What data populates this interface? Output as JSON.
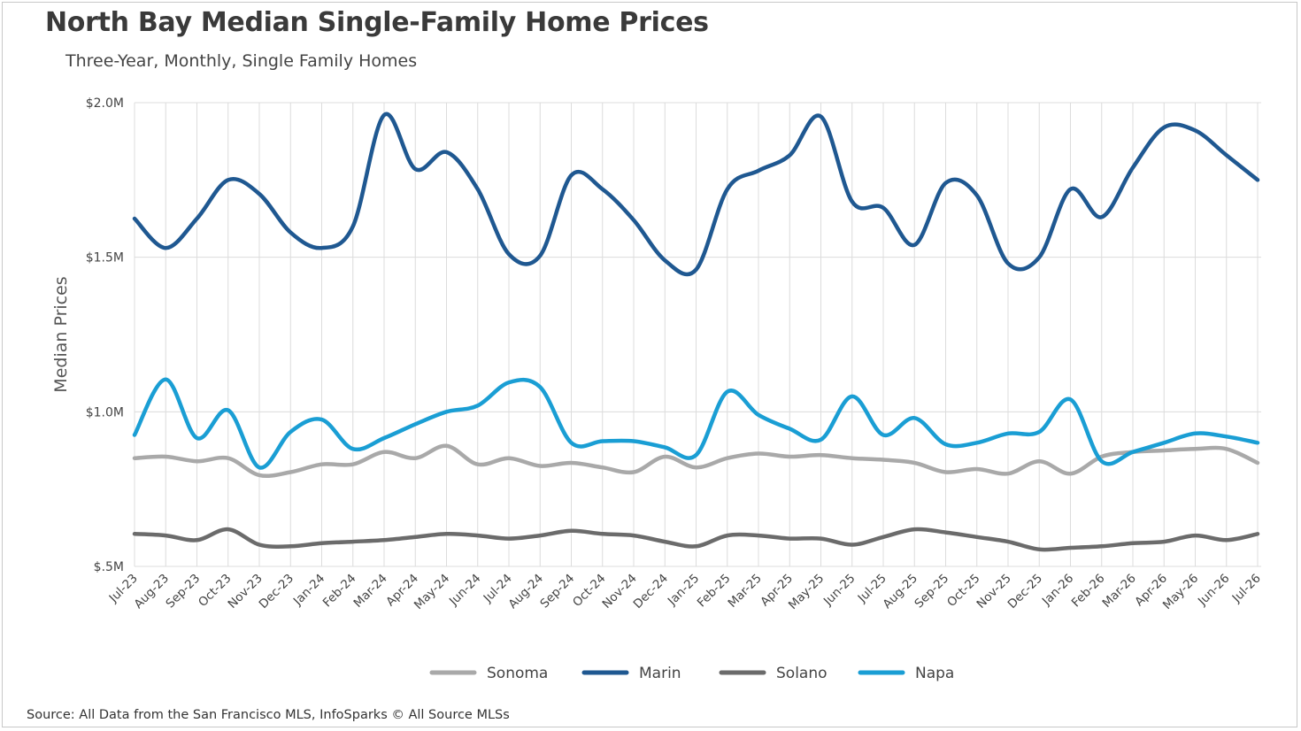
{
  "chart_data": {
    "type": "line",
    "title": "North Bay Median Single-Family Home Prices",
    "subtitle": "Three-Year, Monthly, Single Family Homes",
    "ylabel": "Median Prices",
    "xlabel": "",
    "ylim": [
      500000,
      2000000
    ],
    "yticks": [
      {
        "value": 500000,
        "label": "$.5M"
      },
      {
        "value": 1000000,
        "label": "$1.0M"
      },
      {
        "value": 1500000,
        "label": "$1.5M"
      },
      {
        "value": 2000000,
        "label": "$2.0M"
      }
    ],
    "grid": true,
    "legend_position": "bottom",
    "categories": [
      "Jul-23",
      "Aug-23",
      "Sep-23",
      "Oct-23",
      "Nov-23",
      "Dec-23",
      "Jan-24",
      "Feb-24",
      "Mar-24",
      "Apr-24",
      "May-24",
      "Jun-24",
      "Jul-24",
      "Aug-24",
      "Sep-24",
      "Oct-24",
      "Nov-24",
      "Dec-24",
      "Jan-25",
      "Feb-25",
      "Mar-25",
      "Apr-25",
      "May-25",
      "Jun-25",
      "Jul-25",
      "Aug-25",
      "Sep-25",
      "Oct-25",
      "Nov-25",
      "Dec-25",
      "Jan-26",
      "Feb-26",
      "Mar-26",
      "Apr-26",
      "May-26",
      "Jun-26",
      "Jul-26"
    ],
    "series": [
      {
        "name": "Sonoma",
        "color": "#a9a9a9",
        "values": [
          850000,
          855000,
          840000,
          850000,
          795000,
          805000,
          830000,
          830000,
          870000,
          850000,
          890000,
          830000,
          850000,
          825000,
          835000,
          820000,
          805000,
          855000,
          820000,
          850000,
          865000,
          855000,
          860000,
          850000,
          845000,
          835000,
          805000,
          815000,
          800000,
          840000,
          800000,
          855000,
          870000,
          875000,
          880000,
          880000,
          835000
        ]
      },
      {
        "name": "Marin",
        "color": "#1f5891",
        "values": [
          1625000,
          1530000,
          1625000,
          1750000,
          1705000,
          1580000,
          1530000,
          1600000,
          1960000,
          1785000,
          1840000,
          1720000,
          1510000,
          1505000,
          1765000,
          1720000,
          1620000,
          1490000,
          1460000,
          1720000,
          1780000,
          1830000,
          1955000,
          1680000,
          1660000,
          1540000,
          1740000,
          1700000,
          1480000,
          1500000,
          1720000,
          1630000,
          1790000,
          1920000,
          1910000,
          1830000,
          1750000
        ]
      },
      {
        "name": "Solano",
        "color": "#6b6b6b",
        "values": [
          605000,
          600000,
          585000,
          620000,
          570000,
          565000,
          575000,
          580000,
          585000,
          595000,
          605000,
          600000,
          590000,
          600000,
          615000,
          605000,
          600000,
          580000,
          565000,
          600000,
          600000,
          590000,
          590000,
          570000,
          595000,
          620000,
          610000,
          595000,
          580000,
          555000,
          560000,
          565000,
          575000,
          580000,
          600000,
          585000,
          605000
        ]
      },
      {
        "name": "Napa",
        "color": "#1a9ed4",
        "values": [
          925000,
          1105000,
          915000,
          1005000,
          820000,
          935000,
          975000,
          880000,
          915000,
          960000,
          1000000,
          1020000,
          1095000,
          1080000,
          900000,
          905000,
          905000,
          885000,
          860000,
          1065000,
          990000,
          945000,
          910000,
          1050000,
          925000,
          980000,
          895000,
          900000,
          930000,
          935000,
          1040000,
          840000,
          870000,
          900000,
          930000,
          920000,
          900000
        ]
      }
    ]
  },
  "source_text": "Source: All Data from the San Francisco MLS, InfoSparks © All Source MLSs"
}
